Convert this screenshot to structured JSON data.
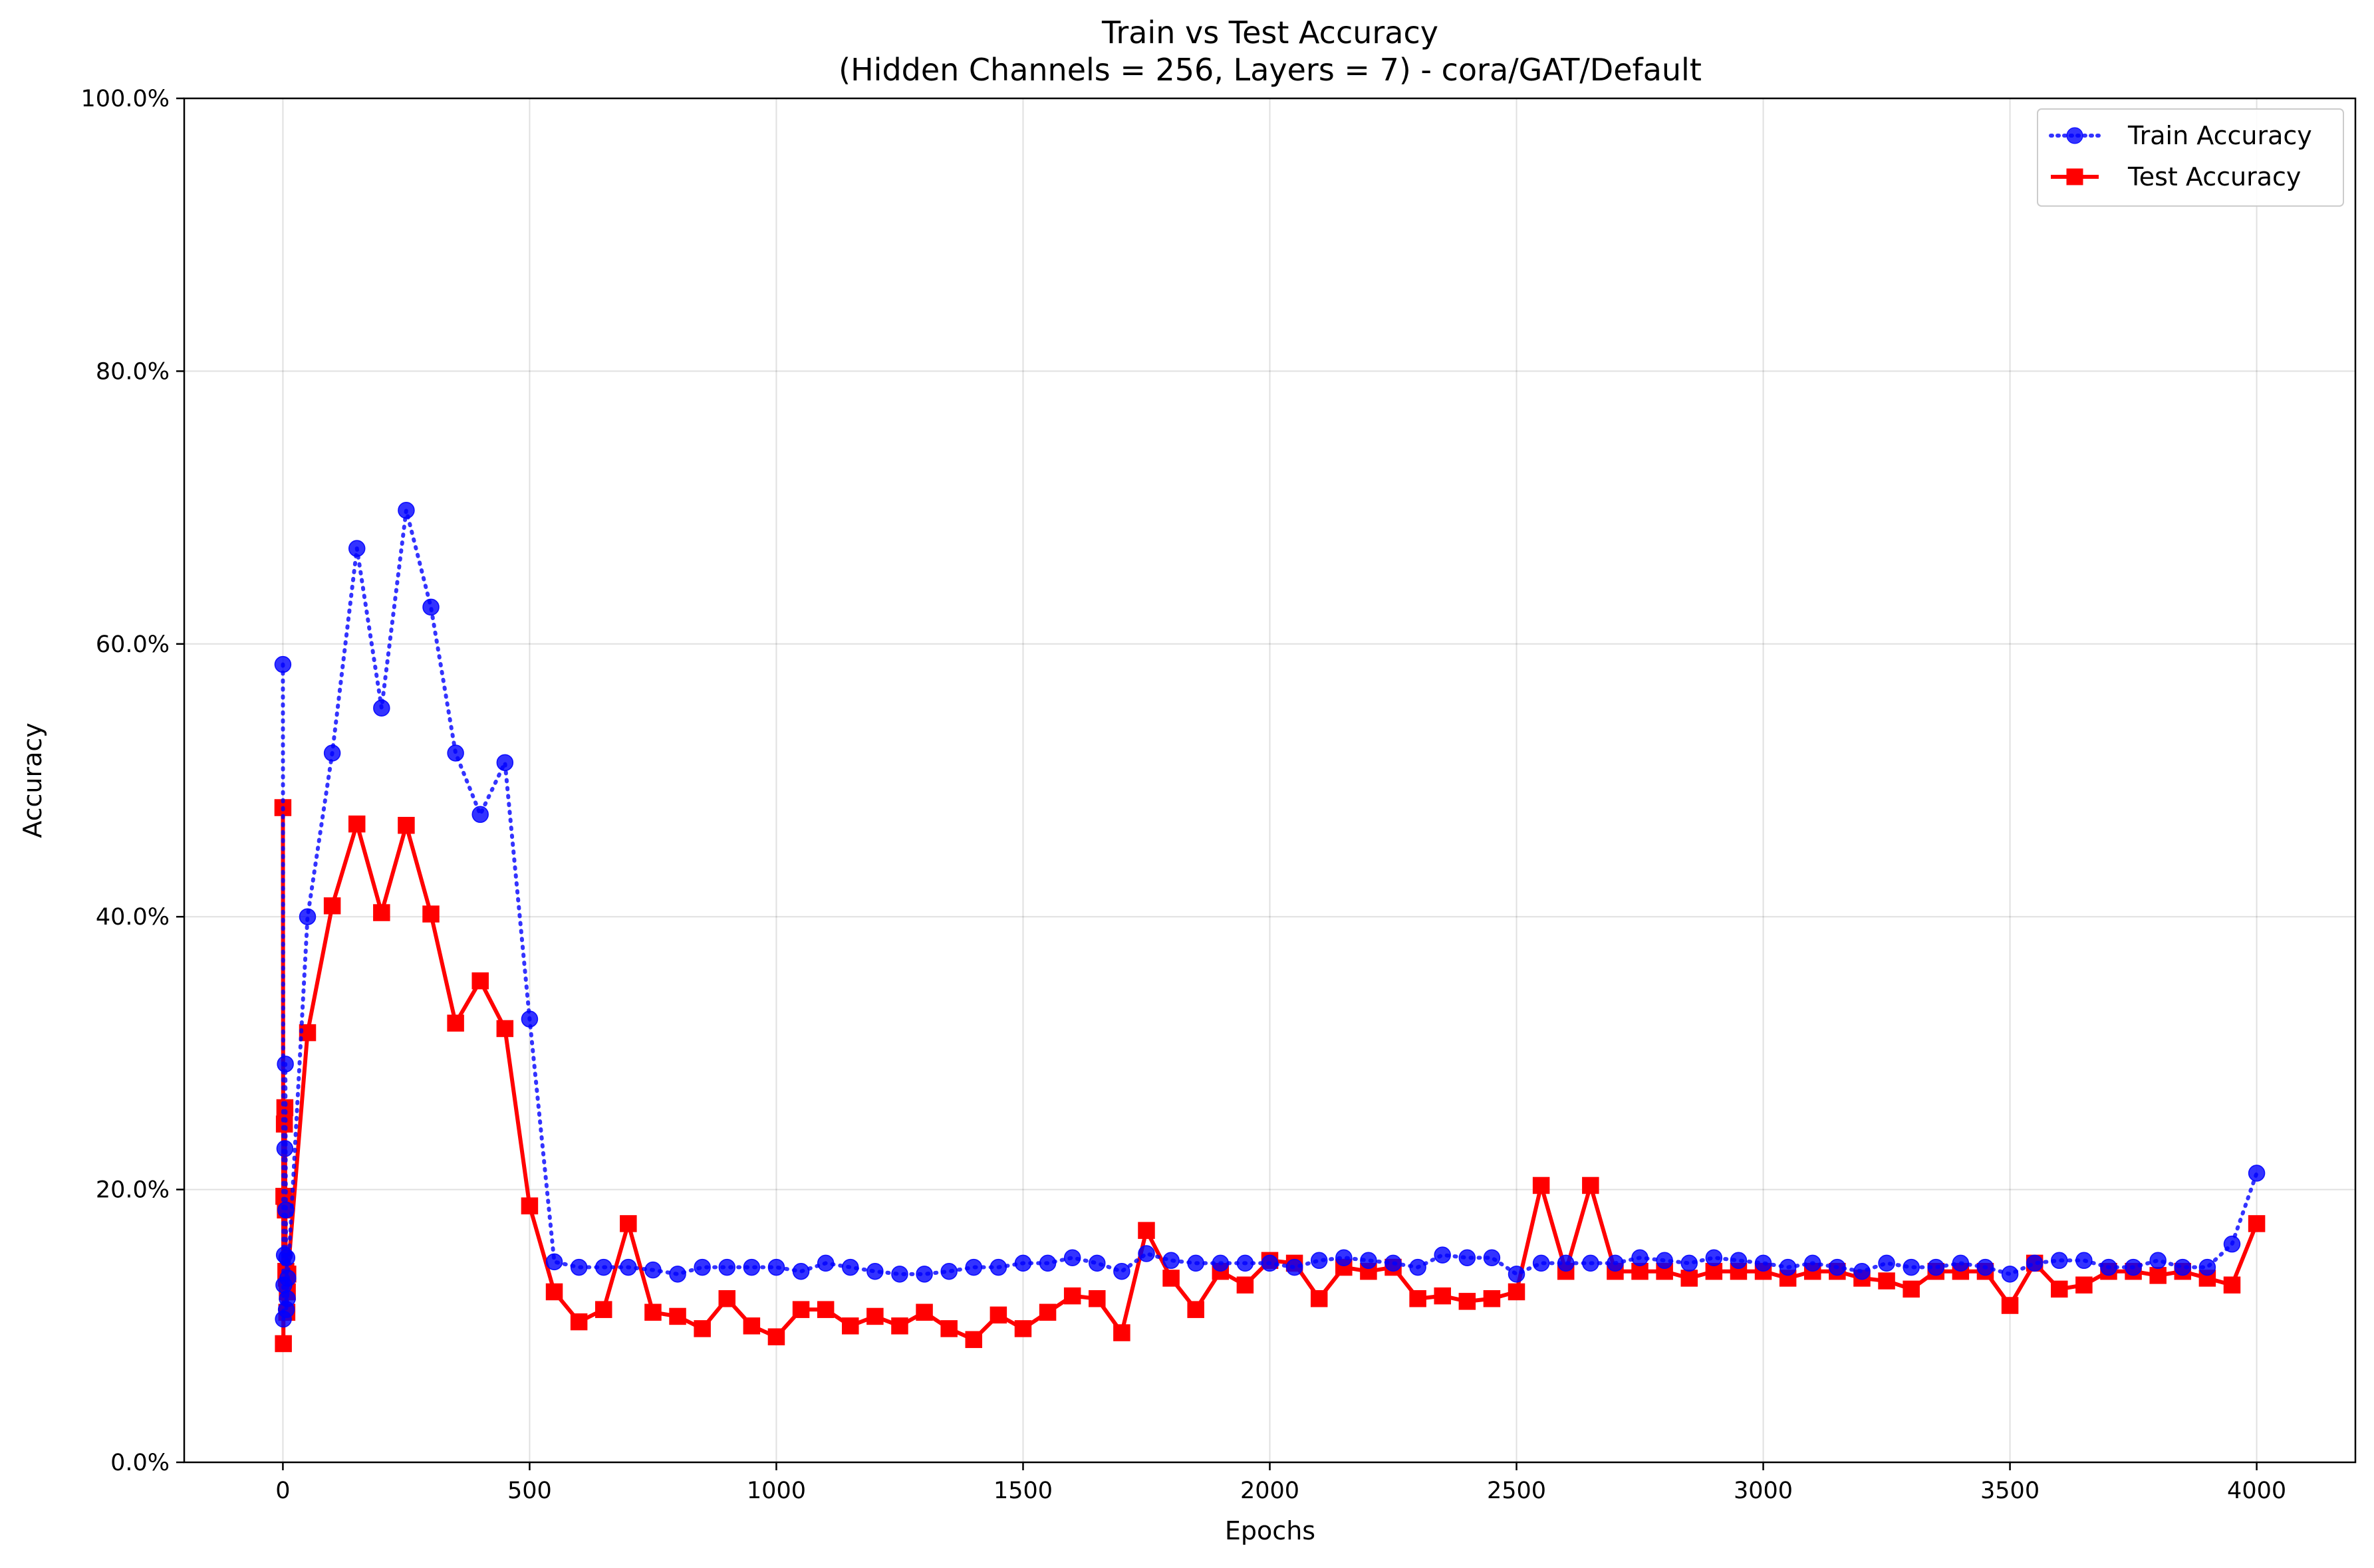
{
  "chart_data": {
    "type": "line",
    "title": "Train vs Test Accuracy",
    "subtitle": "(Hidden Channels = 256, Layers = 7) - cora/GAT/Default",
    "xlabel": "Epochs",
    "ylabel": "Accuracy",
    "xlim": [
      -200,
      4200
    ],
    "ylim": [
      0,
      100
    ],
    "xticks": [
      0,
      500,
      1000,
      1500,
      2000,
      2500,
      3000,
      3500,
      4000
    ],
    "xtick_labels": [
      "0",
      "500",
      "1000",
      "1500",
      "2000",
      "2500",
      "3000",
      "3500",
      "4000"
    ],
    "yticks": [
      0,
      20,
      40,
      60,
      80,
      100
    ],
    "ytick_labels": [
      "0.0%",
      "20.0%",
      "40.0%",
      "60.0%",
      "80.0%",
      "100.0%"
    ],
    "grid": true,
    "legend_position": "top-right",
    "x": [
      0,
      1,
      2,
      3,
      4,
      5,
      6,
      7,
      8,
      9,
      10,
      50,
      100,
      150,
      200,
      250,
      300,
      350,
      400,
      450,
      500,
      550,
      600,
      650,
      700,
      750,
      800,
      850,
      900,
      950,
      1000,
      1050,
      1100,
      1150,
      1200,
      1250,
      1300,
      1350,
      1400,
      1450,
      1500,
      1550,
      1600,
      1650,
      1700,
      1750,
      1800,
      1850,
      1900,
      1950,
      2000,
      2050,
      2100,
      2150,
      2200,
      2250,
      2300,
      2350,
      2400,
      2450,
      2500,
      2550,
      2600,
      2650,
      2700,
      2750,
      2800,
      2850,
      2900,
      2950,
      3000,
      3050,
      3100,
      3150,
      3200,
      3250,
      3300,
      3350,
      3400,
      3450,
      3500,
      3550,
      3600,
      3650,
      3700,
      3750,
      3800,
      3850,
      3900,
      3950,
      4000
    ],
    "series": [
      {
        "name": "Train Accuracy",
        "color": "#0000ff",
        "marker": "circle",
        "linestyle": "dotted",
        "values": [
          58.5,
          10.5,
          13.0,
          15.2,
          23.0,
          29.2,
          18.5,
          11.2,
          15.0,
          12.0,
          13.5,
          40.0,
          52.0,
          67.0,
          55.3,
          69.8,
          62.7,
          52.0,
          47.5,
          51.3,
          32.5,
          14.7,
          14.3,
          14.3,
          14.3,
          14.1,
          13.8,
          14.3,
          14.3,
          14.3,
          14.3,
          14.0,
          14.6,
          14.3,
          14.0,
          13.8,
          13.8,
          14.0,
          14.3,
          14.3,
          14.6,
          14.6,
          15.0,
          14.6,
          14.0,
          15.3,
          14.8,
          14.6,
          14.6,
          14.6,
          14.6,
          14.3,
          14.8,
          15.0,
          14.8,
          14.6,
          14.3,
          15.2,
          15.0,
          15.0,
          13.8,
          14.6,
          14.6,
          14.6,
          14.6,
          15.0,
          14.8,
          14.6,
          15.0,
          14.8,
          14.6,
          14.3,
          14.6,
          14.3,
          14.0,
          14.6,
          14.3,
          14.3,
          14.6,
          14.3,
          13.8,
          14.6,
          14.8,
          14.8,
          14.3,
          14.3,
          14.8,
          14.3,
          14.3,
          16.0,
          21.2
        ]
      },
      {
        "name": "Test Accuracy",
        "color": "#ff0000",
        "marker": "square",
        "linestyle": "solid",
        "values": [
          48.0,
          8.7,
          19.5,
          24.8,
          26.0,
          18.5,
          14.0,
          13.5,
          11.0,
          12.5,
          13.8,
          31.5,
          40.8,
          46.8,
          40.3,
          46.7,
          40.2,
          32.2,
          35.3,
          31.8,
          18.8,
          12.5,
          10.3,
          11.2,
          17.5,
          11.0,
          10.7,
          9.8,
          12.0,
          10.0,
          9.2,
          11.2,
          11.2,
          10.0,
          10.7,
          10.0,
          11.0,
          9.8,
          9.0,
          10.8,
          9.8,
          11.0,
          12.2,
          12.0,
          9.5,
          17.0,
          13.5,
          11.2,
          14.0,
          13.0,
          14.8,
          14.6,
          12.0,
          14.3,
          14.0,
          14.3,
          12.0,
          12.2,
          11.8,
          12.0,
          12.5,
          20.3,
          14.0,
          20.3,
          14.0,
          14.0,
          14.0,
          13.5,
          14.0,
          14.0,
          14.0,
          13.5,
          14.0,
          14.0,
          13.5,
          13.3,
          12.7,
          14.0,
          14.0,
          14.0,
          11.5,
          14.6,
          12.7,
          13.0,
          14.0,
          14.0,
          13.7,
          14.0,
          13.5,
          13.0,
          17.5
        ]
      }
    ]
  }
}
